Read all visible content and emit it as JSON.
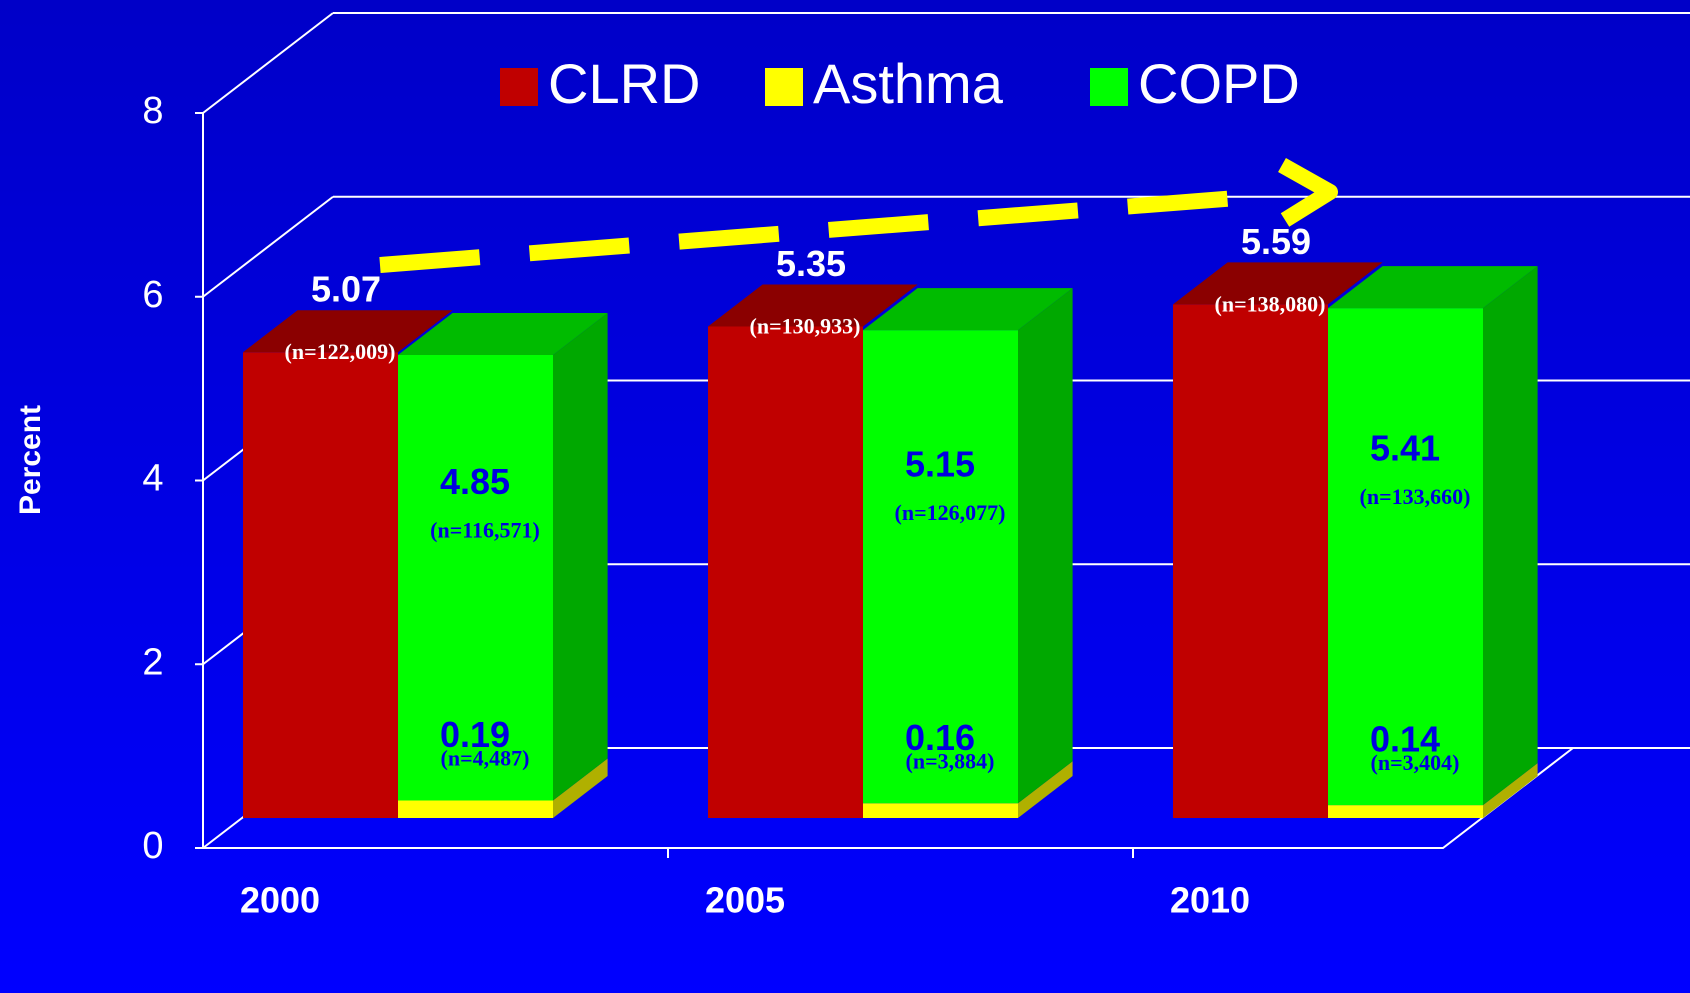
{
  "chart_data": {
    "type": "bar3d",
    "categories": [
      "2000",
      "2005",
      "2010"
    ],
    "ylabel": "Percent",
    "ylim": [
      0,
      8
    ],
    "yticks": [
      0,
      2,
      4,
      6,
      8
    ],
    "series": [
      {
        "name": "CLRD",
        "color": "#c00000",
        "values": [
          5.07,
          5.35,
          5.59
        ],
        "notes": [
          "(n=122,009)",
          "(n=130,933)",
          "(n=138,080)"
        ]
      },
      {
        "name": "Asthma",
        "color": "#ffff00",
        "values": [
          0.19,
          0.16,
          0.14
        ],
        "notes": [
          "(n=4,487)",
          "(n=3,884)",
          "(n=3,404)"
        ]
      },
      {
        "name": "COPD",
        "color": "#00ff00",
        "values": [
          4.85,
          5.15,
          5.41
        ],
        "notes": [
          "(n=116,571)",
          "(n=126,077)",
          "(n=133,660)"
        ]
      }
    ]
  }
}
